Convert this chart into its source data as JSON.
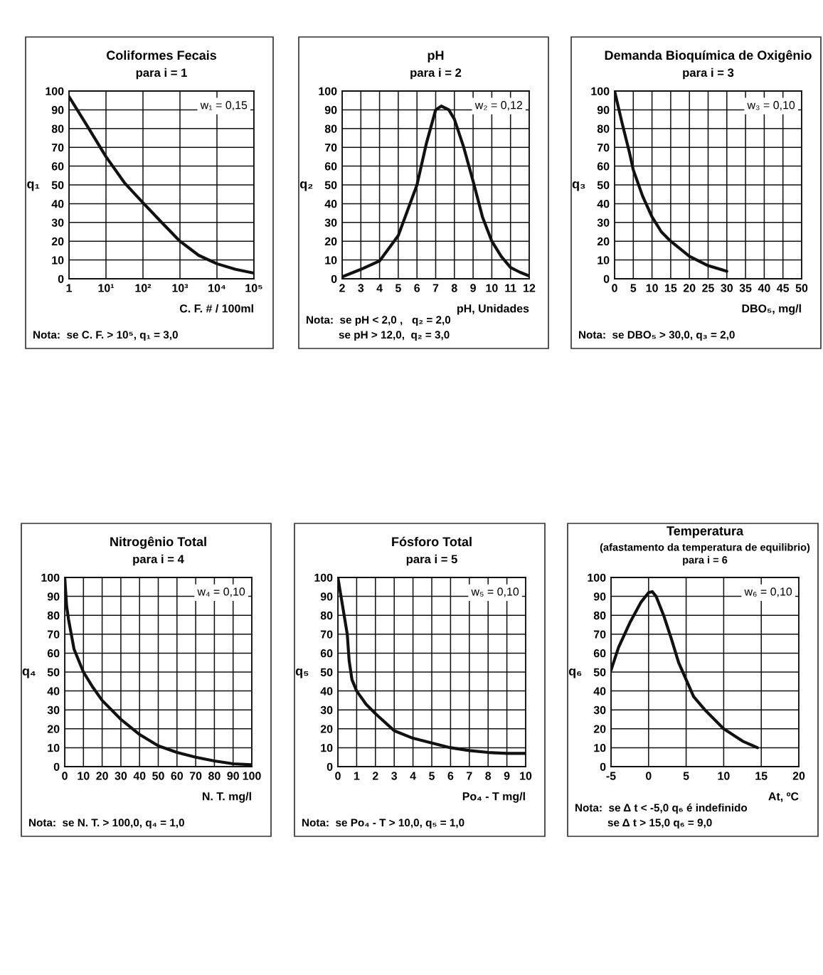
{
  "chart_data": [
    {
      "type": "line",
      "title": "Coliformes Fecais",
      "subtitle": "para i = 1",
      "xlabel": "C. F. # / 100ml",
      "ylabel": "q₁",
      "log": "x",
      "annotations": [
        "w₁ = 0,15",
        "Nota:  se C. F. > 10⁵, q₁ = 3,0"
      ],
      "x": [
        1,
        3.2,
        10,
        32,
        100,
        320,
        1000,
        3200,
        10000,
        32000,
        100000
      ],
      "series": [
        {
          "color": "#111111",
          "values": [
            97,
            81,
            65,
            51,
            40.5,
            30,
            20,
            12.5,
            8,
            5,
            3
          ]
        }
      ],
      "xlim": [
        1,
        100000
      ],
      "ylim": [
        0,
        100
      ],
      "xticks": [
        1,
        {
          "value": 10,
          "label": "10¹"
        },
        {
          "value": 100,
          "label": "10²"
        },
        {
          "value": 1000,
          "label": "10³"
        },
        {
          "value": 10000,
          "label": "10⁴"
        },
        {
          "value": 100000,
          "label": "10⁵"
        }
      ],
      "yticks": [
        0,
        10,
        20,
        30,
        40,
        50,
        60,
        70,
        80,
        90,
        100
      ],
      "grid": true
    },
    {
      "type": "line",
      "title": "pH",
      "subtitle": "para i = 2",
      "xlabel": "pH, Unidades",
      "ylabel": "q₂",
      "annotations": [
        "w₂ = 0,12",
        "Nota:  se pH < 2,0 ,   q₂ = 2,0",
        "se pH > 12,0,  q₂ = 3,0"
      ],
      "x": [
        2,
        3,
        4,
        5,
        6,
        6.5,
        7,
        7.3,
        7.7,
        8,
        8.5,
        9,
        9.5,
        10,
        10.5,
        11,
        11.5,
        12
      ],
      "series": [
        {
          "color": "#111111",
          "values": [
            1,
            5,
            9.5,
            23,
            50,
            72,
            90,
            92,
            90,
            85,
            70,
            52,
            33,
            20,
            12,
            6,
            3.5,
            1.5
          ]
        }
      ],
      "xlim": [
        2,
        12
      ],
      "ylim": [
        0,
        100
      ],
      "xticks": [
        2,
        3,
        4,
        5,
        6,
        7,
        8,
        9,
        10,
        11,
        12
      ],
      "yticks": [
        0,
        10,
        20,
        30,
        40,
        50,
        60,
        70,
        80,
        90,
        100
      ],
      "grid": true
    },
    {
      "type": "line",
      "title": "Demanda Bioquímica de Oxigênio",
      "subtitle": "para i = 3",
      "xlabel": "DBO₅, mg/l",
      "ylabel": "q₃",
      "annotations": [
        "w₃ = 0,10",
        "Nota:  se DBO₅ > 30,0, q₃ = 2,0"
      ],
      "x": [
        0,
        2,
        4,
        5,
        7.5,
        10,
        12.5,
        15,
        20,
        25,
        30
      ],
      "series": [
        {
          "color": "#111111",
          "values": [
            100,
            83,
            67,
            58,
            44,
            33,
            25,
            20,
            12,
            7,
            4
          ]
        }
      ],
      "xlim": [
        0,
        50
      ],
      "ylim": [
        0,
        100
      ],
      "xticks": [
        0,
        5,
        10,
        15,
        20,
        25,
        30,
        35,
        40,
        45,
        50
      ],
      "yticks": [
        0,
        10,
        20,
        30,
        40,
        50,
        60,
        70,
        80,
        90,
        100
      ],
      "grid": true
    },
    {
      "type": "line",
      "title": "Nitrogênio Total",
      "subtitle": "para i = 4",
      "xlabel": "N. T. mg/l",
      "ylabel": "q₄",
      "annotations": [
        "w₄ = 0,10",
        "Nota:  se N. T. > 100,0, q₄ = 1,0"
      ],
      "x": [
        0,
        1,
        2,
        5,
        10,
        15,
        20,
        30,
        40,
        50,
        60,
        70,
        80,
        90,
        100
      ],
      "series": [
        {
          "color": "#111111",
          "values": [
            100,
            85,
            78,
            62,
            50,
            42,
            35,
            25,
            17,
            11,
            7.5,
            5,
            3,
            1.5,
            1
          ]
        }
      ],
      "xlim": [
        0,
        100
      ],
      "ylim": [
        0,
        100
      ],
      "xticks": [
        0,
        10,
        20,
        30,
        40,
        50,
        60,
        70,
        80,
        90,
        100
      ],
      "yticks": [
        0,
        10,
        20,
        30,
        40,
        50,
        60,
        70,
        80,
        90,
        100
      ],
      "grid": true
    },
    {
      "type": "line",
      "title": "Fósforo Total",
      "subtitle": "para i = 5",
      "xlabel": "Po₄ - T mg/l",
      "ylabel": "q₅",
      "annotations": [
        "w₅ = 0,10",
        "Nota:  se Po₄ - T > 10,0, q₅ = 1,0"
      ],
      "x": [
        0,
        0.25,
        0.5,
        0.6,
        0.75,
        1,
        1.5,
        2,
        3,
        4,
        5,
        6,
        7,
        8,
        9,
        10
      ],
      "series": [
        {
          "color": "#111111",
          "values": [
            100,
            85,
            70,
            56,
            46,
            40,
            33,
            28,
            19,
            15,
            12.5,
            10,
            8.5,
            7.5,
            7,
            7
          ]
        }
      ],
      "xlim": [
        0,
        10
      ],
      "ylim": [
        0,
        100
      ],
      "xticks": [
        0,
        1,
        2,
        3,
        4,
        5,
        6,
        7,
        8,
        9,
        10
      ],
      "yticks": [
        0,
        10,
        20,
        30,
        40,
        50,
        60,
        70,
        80,
        90,
        100
      ],
      "grid": true
    },
    {
      "type": "line",
      "title": "Temperatura",
      "subtitle": "(afastamento da temperatura de equilibrio)\npara i = 6",
      "xlabel": "At, ºC",
      "ylabel": "q₆",
      "annotations": [
        "w₆ = 0,10",
        "Nota:  se Δ t < -5,0 q₆ é indefinido",
        "se Δ t > 15,0 q₆ = 9,0"
      ],
      "x": [
        -5,
        -4,
        -2.5,
        -1,
        0,
        0.5,
        1,
        2,
        3,
        4,
        5,
        6,
        7.5,
        10,
        12.5,
        14.5
      ],
      "series": [
        {
          "color": "#111111",
          "values": [
            51,
            63,
            76,
            87,
            92,
            92.5,
            90,
            80,
            68,
            55,
            46,
            37,
            30,
            20,
            13.5,
            10
          ]
        }
      ],
      "xlim": [
        -5,
        20
      ],
      "ylim": [
        0,
        100
      ],
      "xticks": [
        -5,
        0,
        5,
        10,
        15,
        20
      ],
      "yticks": [
        0,
        10,
        20,
        30,
        40,
        50,
        60,
        70,
        80,
        90,
        100
      ],
      "grid": true
    }
  ]
}
